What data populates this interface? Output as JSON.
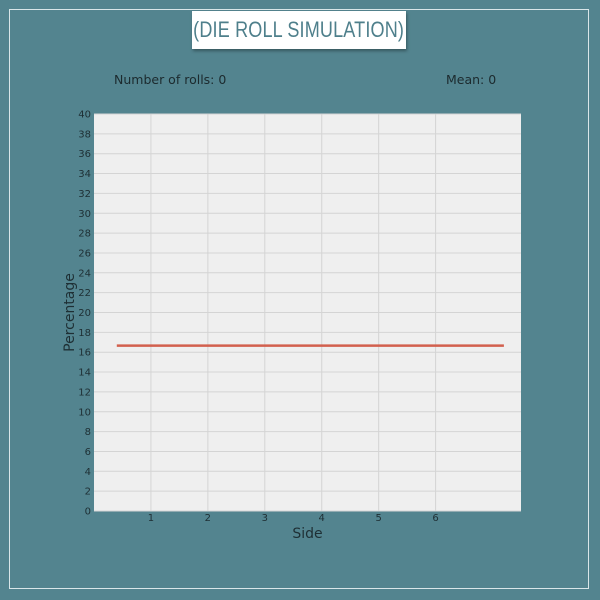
{
  "title": "(DIE ROLL SIMULATION)",
  "stats": {
    "rolls_label": "Number of rolls:",
    "rolls_value": "0",
    "mean_label": "Mean:",
    "mean_value": "0"
  },
  "colors": {
    "background": "#53848f",
    "plot_background": "#efefef",
    "expected_line": "#d2604e",
    "title_text": "#4e7f8b"
  },
  "chart_data": {
    "type": "line",
    "title": "",
    "xlabel": "Side",
    "ylabel": "Percentage",
    "xlim": [
      0,
      7.5
    ],
    "ylim": [
      0,
      40
    ],
    "x_ticks": [
      1,
      2,
      3,
      4,
      5,
      6
    ],
    "y_ticks": [
      0,
      2,
      4,
      6,
      8,
      10,
      12,
      14,
      16,
      18,
      20,
      22,
      24,
      26,
      28,
      30,
      32,
      34,
      36,
      38,
      40
    ],
    "grid": true,
    "series": [
      {
        "x": [
          0.4,
          7.2
        ],
        "y": [
          16.67,
          16.67
        ]
      }
    ]
  }
}
